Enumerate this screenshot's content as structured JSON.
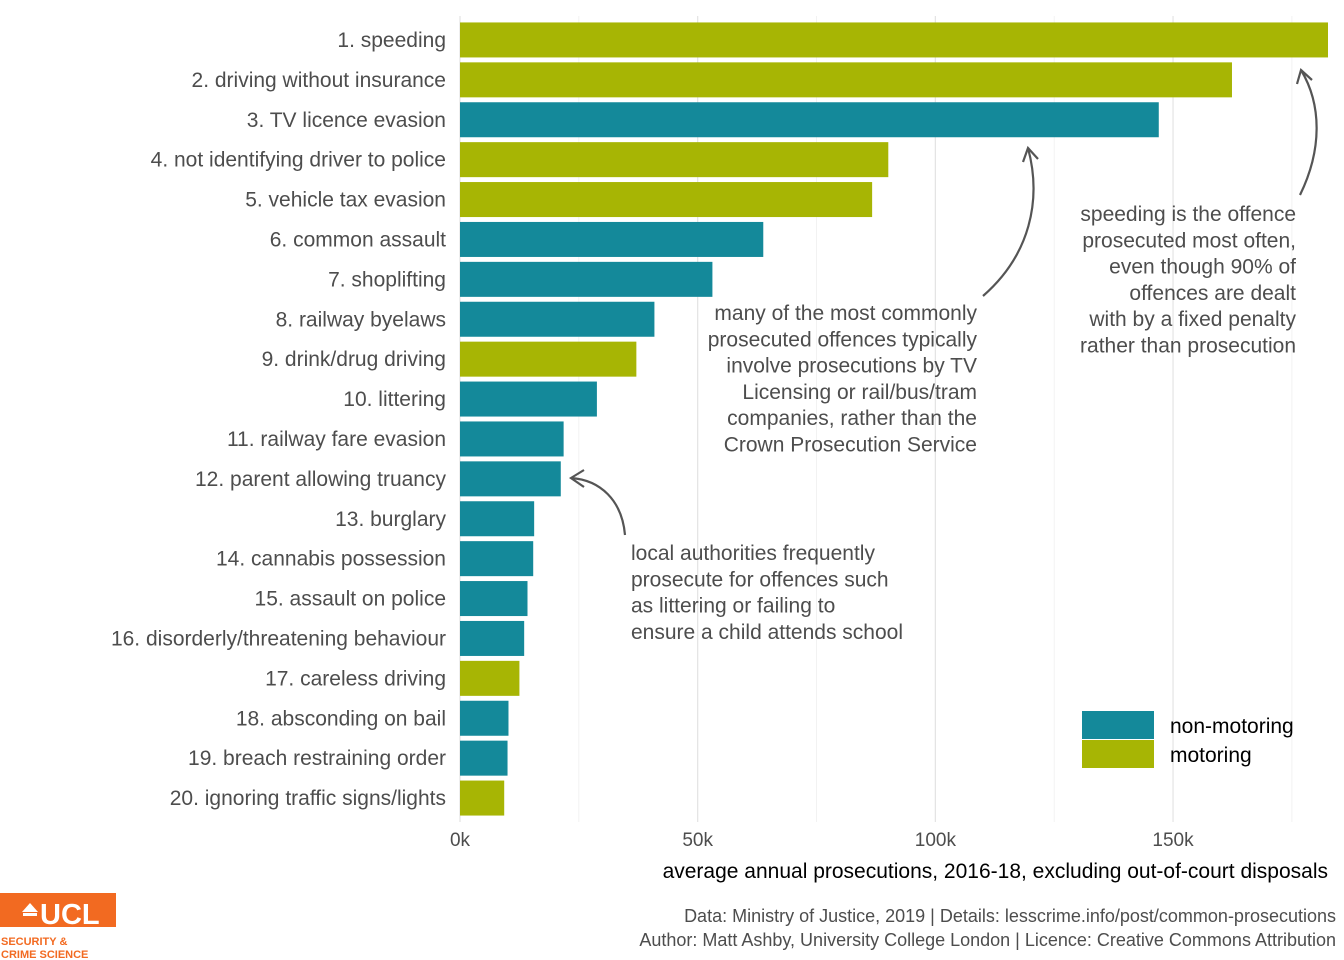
{
  "colors": {
    "non_motoring": "#14899a",
    "motoring": "#a7b504",
    "logo": "#f26a21"
  },
  "chart_data": {
    "type": "bar",
    "orientation": "horizontal",
    "categories": [
      "1. speeding",
      "2. driving without insurance",
      "3. TV licence evasion",
      "4. not identifying driver to police",
      "5. vehicle tax evasion",
      "6. common assault",
      "7. shoplifting",
      "8. railway byelaws",
      "9. drink/drug driving",
      "10. littering",
      "11. railway fare evasion",
      "12. parent allowing truancy",
      "13. burglary",
      "14. cannabis possession",
      "15. assault on police",
      "16. disorderly/threatening behaviour",
      "17. careless driving",
      "18. absconding on bail",
      "19. breach restraining order",
      "20. ignoring traffic signs/lights"
    ],
    "values": [
      182600,
      162400,
      147000,
      90100,
      86700,
      63800,
      53100,
      40900,
      37100,
      28800,
      21800,
      21200,
      15600,
      15400,
      14200,
      13500,
      12500,
      10200,
      10000,
      9300
    ],
    "groups": [
      "motoring",
      "motoring",
      "non-motoring",
      "motoring",
      "motoring",
      "non-motoring",
      "non-motoring",
      "non-motoring",
      "motoring",
      "non-motoring",
      "non-motoring",
      "non-motoring",
      "non-motoring",
      "non-motoring",
      "non-motoring",
      "non-motoring",
      "motoring",
      "non-motoring",
      "non-motoring",
      "motoring"
    ],
    "xlim": [
      0,
      182600
    ],
    "x_ticks": [
      0,
      50000,
      100000,
      150000
    ],
    "x_tick_labels": [
      "0k",
      "50k",
      "100k",
      "150k"
    ],
    "xlabel": "average annual prosecutions, 2016-18, excluding out-of-court disposals",
    "legend": {
      "placement": "bottom-right",
      "items": [
        {
          "label": "non-motoring",
          "group": "non-motoring"
        },
        {
          "label": "motoring",
          "group": "motoring"
        }
      ]
    },
    "annotations": [
      {
        "id": "speeding",
        "lines": [
          "speeding is the offence",
          "prosecuted most often,",
          "even though 90% of",
          "offences are dealt",
          "with by a fixed penalty",
          "rather than prosecution"
        ]
      },
      {
        "id": "common",
        "lines": [
          "many of the most commonly",
          "prosecuted offences typically",
          "involve prosecutions by TV",
          "Licensing or rail/bus/tram",
          "companies, rather than the",
          "Crown Prosecution Service"
        ]
      },
      {
        "id": "local",
        "lines": [
          "local authorities frequently",
          "prosecute for offences such",
          "as littering or failing to",
          "ensure a child attends school"
        ]
      }
    ],
    "grid": true
  },
  "caption": {
    "line1": "Data: Ministry of Justice, 2019 |  Details: lesscrime.info/post/common-prosecutions",
    "line2": "Author: Matt Ashby, University College London |  Licence: Creative Commons Attribution"
  },
  "logo": {
    "wordmark": "UCL",
    "line1": "SECURITY &",
    "line2": "CRIME SCIENCE"
  }
}
